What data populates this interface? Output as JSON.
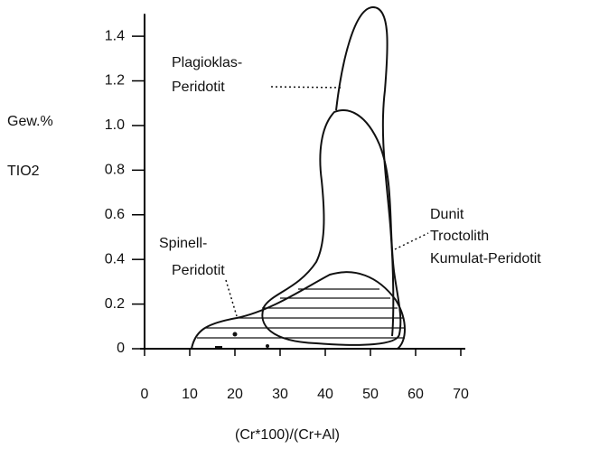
{
  "chart_data": {
    "type": "field-diagram",
    "x_label": "(Cr*100)/(Cr+Al)",
    "y_label": [
      "Gew.%",
      "TIO2"
    ],
    "annotations": [
      "Plagioklas-",
      "Peridotit",
      "Spinell-",
      "Peridotit",
      "Dunit",
      "Troctolith",
      "Kumulat-Peridotit"
    ],
    "xlim": [
      0,
      70
    ],
    "xticks": [
      0,
      10,
      20,
      30,
      40,
      50,
      60,
      70
    ],
    "ylim": [
      0,
      1.5
    ],
    "yticks": [
      0,
      0.2,
      0.4,
      0.6,
      0.8,
      {
        "value": 1,
        "label": "1.0"
      },
      1.2,
      1.4
    ],
    "color": "#000000"
  }
}
